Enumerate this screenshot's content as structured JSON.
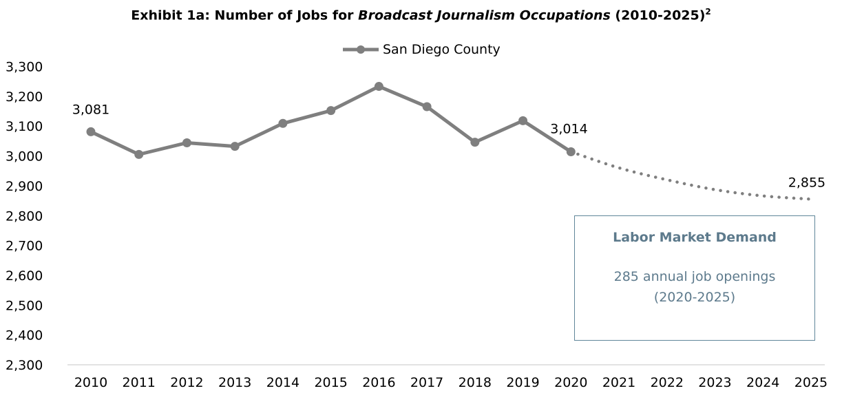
{
  "title": {
    "prefix": "Exhibit 1a: Number of Jobs for ",
    "italic": "Broadcast Journalism Occupations",
    "suffix": " (2010-2025)",
    "footnote": "2"
  },
  "legend": {
    "series_name": "San Diego County"
  },
  "colors": {
    "series": "#7f7f7f",
    "axis": "#d9d9d9",
    "box_border": "#5f8699",
    "box_text": "#5d7a8c"
  },
  "callout": {
    "heading": "Labor Market Demand",
    "line1": "285 annual job openings",
    "line2": "(2020-2025)"
  },
  "chart_data": {
    "type": "line",
    "categories": [
      "2010",
      "2011",
      "2012",
      "2013",
      "2014",
      "2015",
      "2016",
      "2017",
      "2018",
      "2019",
      "2020",
      "2021",
      "2022",
      "2023",
      "2024",
      "2025"
    ],
    "series": [
      {
        "name": "San Diego County",
        "actual": [
          3081,
          3005,
          3044,
          3032,
          3109,
          3152,
          3233,
          3165,
          3046,
          3118,
          3014
        ],
        "projected": [
          3014,
          2960,
          2920,
          2887,
          2866,
          2855
        ]
      }
    ],
    "data_labels": [
      {
        "category": "2010",
        "text": "3,081"
      },
      {
        "category": "2020",
        "text": "3,014"
      },
      {
        "category": "2025",
        "text": "2,855"
      }
    ],
    "y_ticks": [
      "2,300",
      "2,400",
      "2,500",
      "2,600",
      "2,700",
      "2,800",
      "2,900",
      "3,000",
      "3,100",
      "3,200",
      "3,300"
    ],
    "ylim": [
      2300,
      3300
    ],
    "grid": false,
    "legend_position": "top"
  }
}
